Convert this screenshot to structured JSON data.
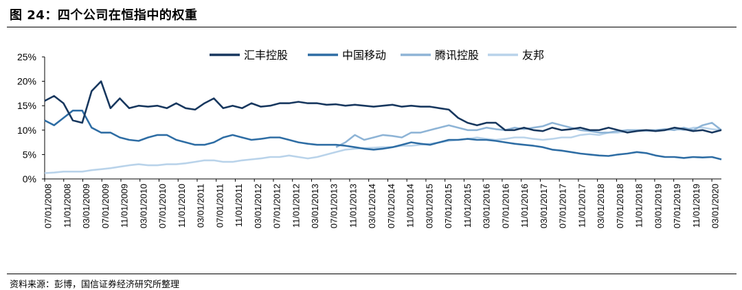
{
  "title": "图 24：四个公司在恒指中的权重",
  "source": "资料来源：彭博，国信证券经济研究所整理",
  "chart_data": {
    "type": "line",
    "ylim": [
      0,
      25
    ],
    "y_ticks": [
      "0%",
      "5%",
      "10%",
      "15%",
      "20%",
      "25%"
    ],
    "x_tick_labels": [
      "07/01/2008",
      "11/01/2008",
      "03/01/2009",
      "07/01/2009",
      "11/01/2009",
      "03/01/2010",
      "07/01/2010",
      "11/01/2010",
      "03/01/2011",
      "07/01/2011",
      "11/01/2011",
      "03/01/2012",
      "07/01/2012",
      "11/01/2012",
      "03/01/2013",
      "07/01/2013",
      "11/01/2013",
      "03/01/2014",
      "07/01/2014",
      "11/01/2014",
      "03/01/2015",
      "07/01/2015",
      "11/01/2015",
      "03/01/2016",
      "07/01/2016",
      "11/01/2016",
      "03/01/2017",
      "07/01/2017",
      "11/01/2017",
      "03/01/2018",
      "07/01/2018",
      "11/01/2018",
      "03/01/2019",
      "07/01/2019",
      "11/01/2019",
      "03/01/2020"
    ],
    "x": [
      "2008-07",
      "2008-09",
      "2008-11",
      "2009-01",
      "2009-03",
      "2009-05",
      "2009-07",
      "2009-09",
      "2009-11",
      "2010-01",
      "2010-03",
      "2010-05",
      "2010-07",
      "2010-09",
      "2010-11",
      "2011-01",
      "2011-03",
      "2011-05",
      "2011-07",
      "2011-09",
      "2011-11",
      "2012-01",
      "2012-03",
      "2012-05",
      "2012-07",
      "2012-09",
      "2012-11",
      "2013-01",
      "2013-03",
      "2013-05",
      "2013-07",
      "2013-09",
      "2013-11",
      "2014-01",
      "2014-03",
      "2014-05",
      "2014-07",
      "2014-09",
      "2014-11",
      "2015-01",
      "2015-03",
      "2015-05",
      "2015-07",
      "2015-09",
      "2015-11",
      "2016-01",
      "2016-03",
      "2016-05",
      "2016-07",
      "2016-09",
      "2016-11",
      "2017-01",
      "2017-03",
      "2017-05",
      "2017-07",
      "2017-09",
      "2017-11",
      "2018-01",
      "2018-03",
      "2018-05",
      "2018-07",
      "2018-09",
      "2018-11",
      "2019-01",
      "2019-03",
      "2019-05",
      "2019-07",
      "2019-09",
      "2019-11",
      "2020-01",
      "2020-03",
      "2020-05",
      "2020-07"
    ],
    "legend_position": "top",
    "series": [
      {
        "name": "汇丰控股",
        "color": "#17375e",
        "values": [
          16,
          17,
          15.5,
          12,
          11.5,
          18,
          20,
          14.5,
          16.5,
          14.5,
          15,
          14.8,
          15,
          14.5,
          15.5,
          14.5,
          14.2,
          15.5,
          16.5,
          14.5,
          15,
          14.5,
          15.5,
          14.8,
          15,
          15.5,
          15.5,
          15.8,
          15.5,
          15.5,
          15.2,
          15.3,
          15.0,
          15.2,
          15.0,
          14.8,
          15.0,
          15.2,
          14.8,
          15.0,
          14.8,
          14.8,
          14.5,
          14.2,
          12.5,
          11.5,
          11.0,
          11.5,
          11.5,
          10.0,
          10.0,
          10.5,
          10.0,
          9.8,
          10.5,
          10.0,
          10.2,
          10.5,
          10.0,
          10.0,
          10.5,
          10.0,
          9.5,
          9.8,
          10.0,
          9.8,
          10.0,
          10.5,
          10.2,
          9.8,
          10.0,
          9.5,
          10.0
        ]
      },
      {
        "name": "中国移动",
        "color": "#2e6da4",
        "values": [
          12,
          11,
          12.5,
          14,
          14,
          10.5,
          9.5,
          9.5,
          8.5,
          8,
          7.8,
          8.5,
          9,
          9,
          8,
          7.5,
          7,
          7,
          7.5,
          8.5,
          9,
          8.5,
          8,
          8.2,
          8.5,
          8.5,
          8,
          7.5,
          7.2,
          7,
          7,
          7,
          6.8,
          6.5,
          6.2,
          6.0,
          6.2,
          6.5,
          7.0,
          7.5,
          7.2,
          7.0,
          7.5,
          8.0,
          8.0,
          8.2,
          8.0,
          8.0,
          7.8,
          7.5,
          7.2,
          7.0,
          6.8,
          6.5,
          6.0,
          5.8,
          5.5,
          5.2,
          5.0,
          4.8,
          4.7,
          5.0,
          5.2,
          5.5,
          5.3,
          4.8,
          4.5,
          4.5,
          4.3,
          4.5,
          4.4,
          4.5,
          4.0
        ]
      },
      {
        "name": "腾讯控股",
        "color": "#8eb4d6",
        "values": [
          null,
          null,
          null,
          null,
          null,
          null,
          null,
          null,
          null,
          null,
          null,
          null,
          null,
          null,
          null,
          null,
          null,
          null,
          null,
          null,
          null,
          null,
          null,
          null,
          null,
          null,
          null,
          null,
          null,
          null,
          null,
          6.5,
          7.5,
          9.0,
          8.0,
          8.5,
          9.0,
          8.8,
          8.5,
          9.5,
          9.5,
          10.0,
          10.5,
          11.0,
          10.5,
          10.0,
          10.0,
          10.5,
          10.2,
          10.0,
          10.5,
          10.2,
          10.5,
          10.8,
          11.5,
          11.0,
          10.5,
          10.0,
          9.8,
          9.5,
          9.5,
          9.8,
          10.0,
          10.0,
          10.0,
          10.0,
          10.2,
          10.0,
          10.5,
          10.0,
          11.0,
          11.5,
          10.0
        ]
      },
      {
        "name": "友邦",
        "color": "#b9d3ea",
        "values": [
          1.2,
          1.3,
          1.5,
          1.5,
          1.5,
          1.8,
          2.0,
          2.2,
          2.5,
          2.8,
          3.0,
          2.8,
          2.8,
          3.0,
          3.0,
          3.2,
          3.5,
          3.8,
          3.8,
          3.5,
          3.5,
          3.8,
          4.0,
          4.2,
          4.5,
          4.5,
          4.8,
          4.5,
          4.2,
          4.5,
          5.0,
          5.5,
          6.0,
          6.2,
          6.3,
          6.4,
          6.5,
          6.5,
          6.8,
          6.8,
          7.0,
          7.2,
          7.5,
          7.8,
          8.0,
          8.2,
          8.5,
          8.2,
          8.0,
          8.2,
          8.5,
          8.5,
          8.2,
          8.0,
          8.2,
          8.5,
          8.5,
          9.0,
          9.2,
          9.0,
          9.5,
          9.5,
          9.8,
          10.0,
          9.8,
          10.0,
          10.0,
          10.2,
          10.0,
          10.5,
          10.5,
          10.2,
          10.0
        ]
      }
    ]
  }
}
